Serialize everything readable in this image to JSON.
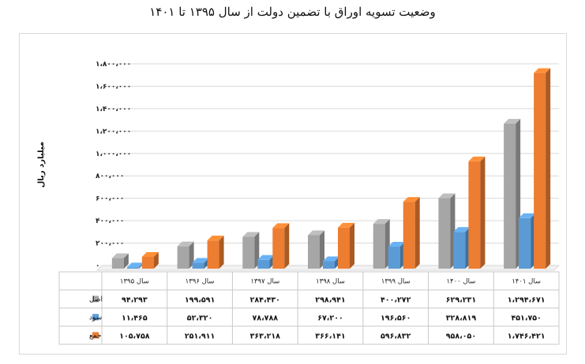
{
  "title": "وضعیت تسویه اوراق با تضمین دولت از سال ۱۳۹۵ تا ۱۴۰۱",
  "chart_data": {
    "type": "bar",
    "title": "وضعیت تسویه اوراق با تضمین دولت از سال ۱۳۹۵ تا ۱۴۰۱",
    "ylabel": "میلیارد ریال",
    "xlabel": "",
    "categories": [
      "سال ۱۳۹۵",
      "سال ۱۳۹۶",
      "سال ۱۳۹۷",
      "سال ۱۳۹۸",
      "سال ۱۳۹۹",
      "سال ۱۴۰۰",
      "سال ۱۴۰۱"
    ],
    "ylim": [
      0,
      1800000
    ],
    "yticks": [
      0,
      200000,
      400000,
      600000,
      800000,
      1000000,
      1200000,
      1400000,
      1600000,
      1800000
    ],
    "ytick_labels": [
      "۰",
      "۲۰۰،۰۰۰",
      "۴۰۰،۰۰۰",
      "۶۰۰،۰۰۰",
      "۸۰۰،۰۰۰",
      "۱،۰۰۰،۰۰۰",
      "۱،۲۰۰،۰۰۰",
      "۱،۴۰۰،۰۰۰",
      "۱،۶۰۰،۰۰۰",
      "۱،۸۰۰،۰۰۰"
    ],
    "grid": true,
    "legend": "data-table-left",
    "series": [
      {
        "name": "اصل",
        "color": "#a6a6a6",
        "values": [
          94293,
          199591,
          284430,
          298941,
          400272,
          629231,
          1294671
        ],
        "labels": [
          "۹۴،۲۹۳",
          "۱۹۹،۵۹۱",
          "۲۸۴،۴۳۰",
          "۲۹۸،۹۴۱",
          "۴۰۰،۲۷۲",
          "۶۲۹،۲۳۱",
          "۱،۲۹۴،۶۷۱"
        ]
      },
      {
        "name": "سود",
        "color": "#5b9bd5",
        "values": [
          11465,
          52320,
          78788,
          67200,
          196560,
          328819,
          451750
        ],
        "labels": [
          "۱۱،۴۶۵",
          "۵۲،۳۲۰",
          "۷۸،۷۸۸",
          "۶۷،۲۰۰",
          "۱۹۶،۵۶۰",
          "۳۲۸،۸۱۹",
          "۴۵۱،۷۵۰"
        ]
      },
      {
        "name": "جمع",
        "color": "#ed7d31",
        "values": [
          105758,
          251911,
          363218,
          366141,
          596832,
          958050,
          1746421
        ],
        "labels": [
          "۱۰۵،۷۵۸",
          "۲۵۱،۹۱۱",
          "۳۶۳،۲۱۸",
          "۳۶۶،۱۴۱",
          "۵۹۶،۸۳۲",
          "۹۵۸،۰۵۰",
          "۱،۷۴۶،۴۲۱"
        ]
      }
    ]
  }
}
